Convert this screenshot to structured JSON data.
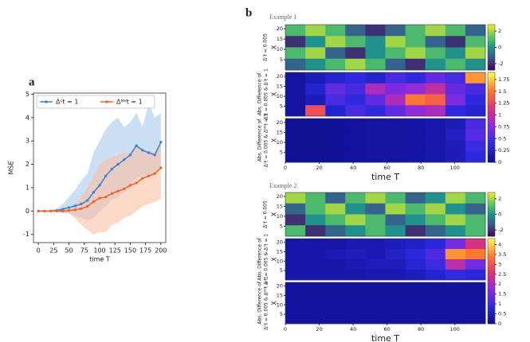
{
  "chart_data": [
    {
      "type": "line",
      "panel_label": "a",
      "xlabel": "time T",
      "ylabel": "MSE",
      "x": [
        0,
        10,
        20,
        30,
        40,
        50,
        60,
        70,
        80,
        90,
        100,
        110,
        120,
        130,
        140,
        150,
        160,
        170,
        180,
        190,
        200
      ],
      "xlim": [
        -8,
        208
      ],
      "xticks": [
        0,
        25,
        50,
        75,
        100,
        125,
        150,
        175,
        200
      ],
      "ylim": [
        -1.35,
        5.05
      ],
      "yticks": [
        -1,
        0,
        1,
        2,
        3,
        4,
        5
      ],
      "legend": "upper-left",
      "series": [
        {
          "name": "Δᶜt = 1",
          "color": "#3a7fd0",
          "band_color": "#a9c9ef",
          "values": [
            0,
            0,
            0,
            0.02,
            0.08,
            0.15,
            0.22,
            0.3,
            0.45,
            0.8,
            1.1,
            1.5,
            1.8,
            2.0,
            2.2,
            2.4,
            2.8,
            2.6,
            2.5,
            2.4,
            2.95
          ],
          "upper": [
            0,
            0,
            0.05,
            0.1,
            0.3,
            0.6,
            0.9,
            1.3,
            1.6,
            2.5,
            3.0,
            3.5,
            3.8,
            4.0,
            3.6,
            3.8,
            4.2,
            3.6,
            4.6,
            4.0,
            4.2
          ],
          "lower": [
            0,
            0,
            0,
            -0.05,
            -0.1,
            -0.1,
            -0.2,
            -0.3,
            -0.4,
            -0.3,
            0,
            0.2,
            0.5,
            0.6,
            0.8,
            1.0,
            1.4,
            1.5,
            1.5,
            1.5,
            1.9
          ]
        },
        {
          "name": "Δᴺⱽt = 1",
          "color": "#f5621f",
          "band_color": "#fbc0a4",
          "values": [
            0,
            0,
            0,
            0,
            0,
            0.02,
            0.05,
            0.1,
            0.2,
            0.4,
            0.55,
            0.6,
            0.75,
            0.85,
            0.95,
            1.1,
            1.2,
            1.4,
            1.5,
            1.6,
            1.85
          ],
          "upper": [
            0,
            0,
            0,
            0.02,
            0.05,
            0.1,
            0.3,
            0.6,
            1.0,
            1.5,
            2.0,
            2.2,
            2.3,
            2.4,
            2.5,
            2.5,
            2.8,
            2.5,
            2.6,
            2.5,
            2.8
          ],
          "lower": [
            0,
            0,
            0,
            -0.02,
            -0.05,
            -0.1,
            -0.3,
            -0.6,
            -0.8,
            -1.0,
            -0.9,
            -0.9,
            -0.6,
            -0.5,
            -0.3,
            -0.2,
            0,
            0.2,
            0.3,
            0.4,
            0.5
          ]
        }
      ]
    },
    {
      "type": "heatmap",
      "panel_label": "b",
      "xlabel": "time T",
      "axis_label": "X",
      "xlim": [
        0,
        118
      ],
      "xticks": [
        0,
        20,
        40,
        60,
        80,
        100
      ],
      "ylim": [
        0,
        22
      ],
      "yticks": [
        5,
        10,
        15,
        20
      ],
      "field_colormap": [
        "#440154",
        "#3b528b",
        "#21918c",
        "#5ec962",
        "#fde725"
      ],
      "difference_colormap": [
        "#0c0c8a",
        "#2a2ae0",
        "#8a2be2",
        "#e0307a",
        "#ff7a30",
        "#ffff50"
      ],
      "examples": [
        {
          "title": "Example 1",
          "field": {
            "ylabel": [
              "Δᶜt = 0.005"
            ],
            "values": [
              [
                1,
                2,
                1,
                -1,
                -2,
                -1,
                1,
                2,
                1,
                -1
              ],
              [
                -2,
                0,
                2,
                1,
                0,
                2,
                1,
                -1,
                -2,
                1
              ],
              [
                1,
                2,
                -1,
                -2,
                0,
                1,
                2,
                1,
                0,
                2
              ],
              [
                -1,
                0,
                1,
                2,
                1,
                -1,
                -2,
                0,
                1,
                0
              ]
            ]
          },
          "field_colorbar": {
            "lim": [
              -2.8,
              2.8
            ],
            "ticks": [
              -2,
              0,
              2
            ]
          },
          "differences": [
            {
              "ylabel": [
                "Abs. Difference of",
                "Δᶜt = 0.005 & Δᶜt = 1"
              ],
              "values": [
                [
                  0.1,
                  0.2,
                  0.3,
                  0.4,
                  0.3,
                  0.5,
                  0.4,
                  0.6,
                  0.5,
                  1.6
                ],
                [
                  0.1,
                  0.3,
                  0.6,
                  0.5,
                  0.9,
                  0.7,
                  0.8,
                  1.0,
                  0.6,
                  0.5
                ],
                [
                  0.1,
                  0.2,
                  0.5,
                  0.4,
                  0.6,
                  0.9,
                  1.5,
                  1.4,
                  0.7,
                  0.4
                ],
                [
                  0.1,
                  1.3,
                  0.3,
                  0.5,
                  0.4,
                  0.6,
                  0.8,
                  0.9,
                  0.4,
                  0.3
                ]
              ]
            },
            {
              "ylabel": [
                "Abs. Difference of",
                "Δᶜt = 0.005 & Δᴺⱽt = 1"
              ],
              "values": [
                [
                  0.05,
                  0.05,
                  0.06,
                  0.08,
                  0.1,
                  0.1,
                  0.12,
                  0.14,
                  0.2,
                  0.5
                ],
                [
                  0.05,
                  0.05,
                  0.06,
                  0.08,
                  0.1,
                  0.1,
                  0.12,
                  0.14,
                  0.25,
                  0.55
                ],
                [
                  0.05,
                  0.05,
                  0.06,
                  0.08,
                  0.1,
                  0.1,
                  0.12,
                  0.14,
                  0.2,
                  0.45
                ],
                [
                  0.05,
                  0.05,
                  0.06,
                  0.08,
                  0.1,
                  0.1,
                  0.12,
                  0.14,
                  0.2,
                  0.4
                ]
              ]
            }
          ],
          "difference_colorbar": {
            "lim": [
              0,
              1.9
            ],
            "ticks": [
              0,
              0.25,
              0.5,
              0.75,
              1,
              1.25,
              1.5,
              1.75
            ]
          }
        },
        {
          "title": "Example 2",
          "field": {
            "ylabel": [
              "Δᶜt = 0.005"
            ],
            "values": [
              [
                2,
                1,
                -1,
                1,
                2,
                1,
                -1,
                0,
                2,
                1
              ],
              [
                -1,
                1,
                2,
                0,
                -1,
                2,
                1,
                2,
                0,
                -1
              ],
              [
                -2,
                0,
                1,
                2,
                1,
                -1,
                0,
                1,
                2,
                1
              ],
              [
                1,
                -2,
                -1,
                0,
                1,
                0,
                -2,
                -1,
                0,
                1
              ]
            ]
          },
          "field_colorbar": {
            "lim": [
              -2.8,
              2.8
            ],
            "ticks": [
              -2,
              0,
              2
            ]
          },
          "differences": [
            {
              "ylabel": [
                "Abs. Difference of",
                "Δᶜt = 0.005 & Δᶜt = 1"
              ],
              "values": [
                [
                  0.3,
                  0.3,
                  0.3,
                  0.4,
                  0.4,
                  0.5,
                  0.6,
                  0.8,
                  1.5,
                  2.5
                ],
                [
                  0.3,
                  0.3,
                  0.4,
                  0.5,
                  0.4,
                  0.6,
                  0.8,
                  1.2,
                  3.6,
                  3.4
                ],
                [
                  0.3,
                  0.3,
                  0.3,
                  0.4,
                  0.5,
                  0.5,
                  0.7,
                  1.0,
                  2.2,
                  1.5
                ],
                [
                  0.3,
                  0.3,
                  0.3,
                  0.3,
                  0.4,
                  0.4,
                  0.5,
                  0.7,
                  0.9,
                  0.8
                ]
              ]
            },
            {
              "ylabel": [
                "Abs. Difference of",
                "Δᶜt = 0.005 & Δᴺⱽt = 1"
              ],
              "values": [
                [
                  0.2,
                  0.2,
                  0.2,
                  0.2,
                  0.2,
                  0.2,
                  0.2,
                  0.2,
                  0.2,
                  0.2
                ],
                [
                  0.2,
                  0.2,
                  0.2,
                  0.2,
                  0.2,
                  0.2,
                  0.2,
                  0.2,
                  0.2,
                  0.2
                ],
                [
                  0.2,
                  0.2,
                  0.2,
                  0.2,
                  0.2,
                  0.2,
                  0.2,
                  0.2,
                  0.2,
                  0.2
                ],
                [
                  0.2,
                  0.2,
                  0.2,
                  0.2,
                  0.2,
                  0.2,
                  0.2,
                  0.2,
                  0.2,
                  0.2
                ]
              ]
            }
          ],
          "difference_colorbar": {
            "lim": [
              0,
              4.3
            ],
            "ticks": [
              0,
              0.5,
              1,
              1.5,
              2,
              2.5,
              3,
              3.5,
              4
            ]
          }
        }
      ]
    }
  ]
}
